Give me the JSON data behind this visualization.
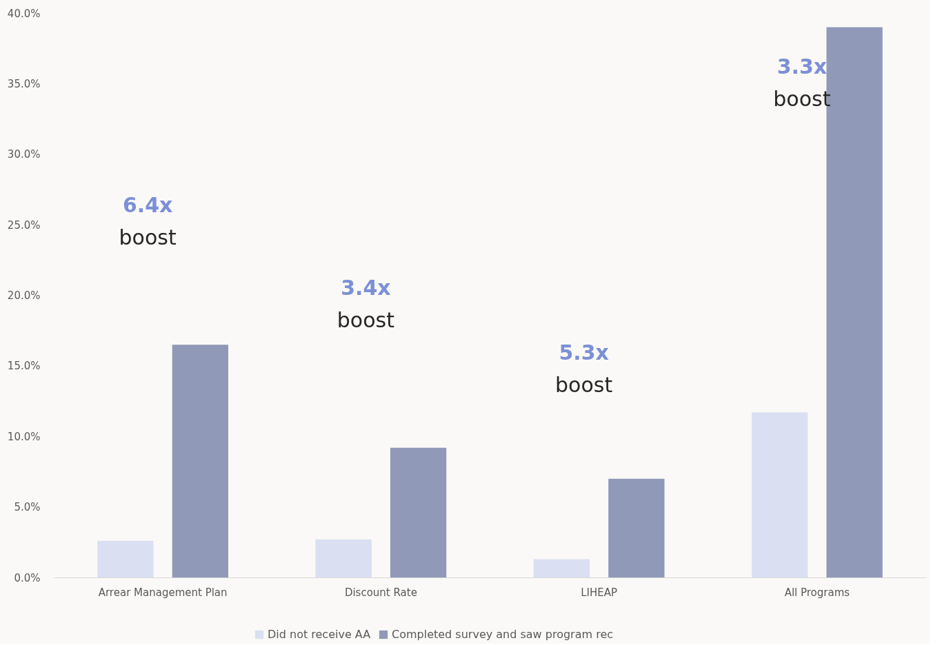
{
  "chart_data": {
    "type": "bar",
    "categories": [
      "Arrear Management Plan",
      "Discount Rate",
      "LIHEAP",
      "All Programs"
    ],
    "series": [
      {
        "name": "Did not receive AA",
        "color": "#dae0f2",
        "values": [
          2.6,
          2.7,
          1.3,
          11.7
        ]
      },
      {
        "name": "Completed survey and saw program rec",
        "color": "#9099b7",
        "values": [
          16.5,
          9.2,
          7.0,
          39.0
        ]
      }
    ],
    "ylim": [
      0,
      40
    ],
    "yticks": [
      {
        "value": 0,
        "label": "0.0%"
      },
      {
        "value": 5,
        "label": "5.0%"
      },
      {
        "value": 10,
        "label": "10.0%"
      },
      {
        "value": 15,
        "label": "15.0%"
      },
      {
        "value": 20,
        "label": "20.0%"
      },
      {
        "value": 25,
        "label": "25.0%"
      },
      {
        "value": 30,
        "label": "30.0%"
      },
      {
        "value": 35,
        "label": "35.0%"
      },
      {
        "value": 40,
        "label": "40.0%"
      }
    ],
    "annotations": [
      "6.4x",
      "boost",
      "3.4x",
      "boost",
      "5.3x",
      "boost",
      "3.3x",
      "boost"
    ],
    "grid": false,
    "legend": "bottom"
  }
}
